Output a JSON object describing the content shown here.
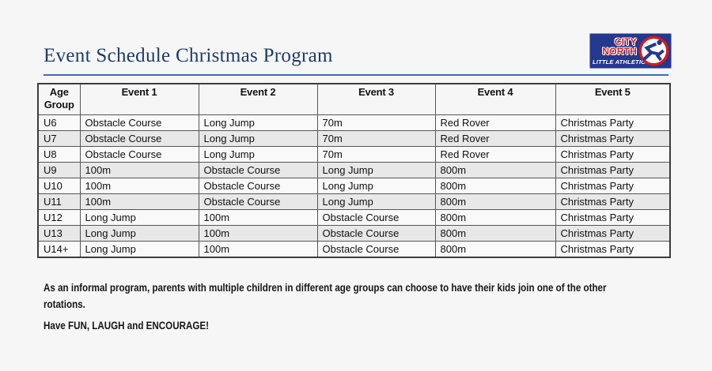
{
  "page": {
    "title": "Event Schedule Christmas Program"
  },
  "logo": {
    "line1": "CITY",
    "line2": "NORTH",
    "line3": "LITTLE ATHLETICS",
    "icon": "runner-icon",
    "colors": {
      "blue": "#24388e",
      "red": "#d71920",
      "white": "#ffffff"
    }
  },
  "table": {
    "headers": [
      "Age Group",
      "Event 1",
      "Event 2",
      "Event 3",
      "Event 4",
      "Event 5"
    ],
    "rows": [
      {
        "age": "U6",
        "events": [
          "Obstacle Course",
          "Long Jump",
          "70m",
          "Red Rover",
          "Christmas Party"
        ]
      },
      {
        "age": "U7",
        "events": [
          "Obstacle Course",
          "Long Jump",
          "70m",
          "Red Rover",
          "Christmas Party"
        ]
      },
      {
        "age": "U8",
        "events": [
          "Obstacle Course",
          "Long Jump",
          "70m",
          "Red Rover",
          "Christmas Party"
        ]
      },
      {
        "age": "U9",
        "events": [
          "100m",
          "Obstacle Course",
          "Long Jump",
          "800m",
          "Christmas Party"
        ]
      },
      {
        "age": "U10",
        "events": [
          "100m",
          "Obstacle Course",
          "Long Jump",
          "800m",
          "Christmas Party"
        ]
      },
      {
        "age": "U11",
        "events": [
          "100m",
          "Obstacle Course",
          "Long Jump",
          "800m",
          "Christmas Party"
        ]
      },
      {
        "age": "U12",
        "events": [
          "Long Jump",
          "100m",
          "Obstacle Course",
          "800m",
          "Christmas Party"
        ]
      },
      {
        "age": "U13",
        "events": [
          "Long Jump",
          "100m",
          "Obstacle Course",
          "800m",
          "Christmas Party"
        ]
      },
      {
        "age": "U14+",
        "events": [
          "Long Jump",
          "100m",
          "Obstacle Course",
          "800m",
          "Christmas Party"
        ]
      }
    ]
  },
  "notes": [
    {
      "lines": [
        "As an informal program, parents with multiple children in different age groups can choose to have their kids join one of the other",
        "rotations."
      ]
    },
    {
      "lines": [
        "Have FUN, LAUGH and ENCOURAGE!"
      ]
    }
  ],
  "colors": {
    "title_text": "#1f3c68",
    "title_rule": "#3e6cb5",
    "row_shading": "#e8e8e8",
    "table_border": "#3c3c3c",
    "background": "#f6f6f6"
  }
}
